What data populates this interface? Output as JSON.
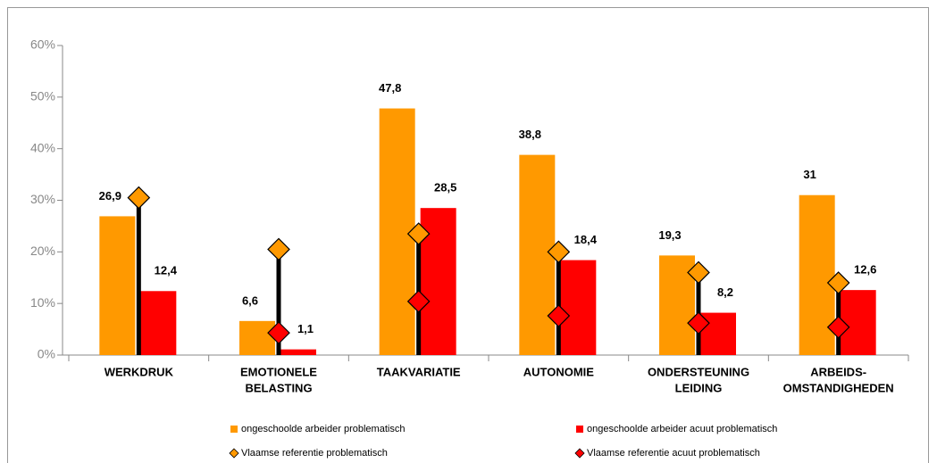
{
  "chart_data": {
    "type": "bar",
    "categories": [
      [
        "WERKDRUK"
      ],
      [
        "EMOTIONELE",
        "BELASTING"
      ],
      [
        "TAAKVARIATIE"
      ],
      [
        "AUTONOMIE"
      ],
      [
        "ONDERSTEUNING",
        "LEIDING"
      ],
      [
        "ARBEIDS-",
        "OMSTANDIGHEDEN"
      ]
    ],
    "series": [
      {
        "name": "ongeschoolde arbeider  problematisch",
        "kind": "bar",
        "color": "#FF9900",
        "values": [
          26.9,
          6.6,
          47.8,
          38.8,
          19.3,
          31
        ],
        "value_labels": [
          "26,9",
          "6,6",
          "47,8",
          "38,8",
          "19,3",
          "31"
        ]
      },
      {
        "name": "ongeschoolde arbeider acuut problematisch",
        "kind": "bar",
        "color": "#FF0000",
        "values": [
          12.4,
          1.1,
          28.5,
          18.4,
          8.2,
          12.6
        ],
        "value_labels": [
          "12,4",
          "1,1",
          "28,5",
          "18,4",
          "8,2",
          "12,6"
        ]
      },
      {
        "name": "Vlaamse referentie problematisch",
        "kind": "marker",
        "color": "#FF9900",
        "values": [
          30.5,
          20.5,
          23.5,
          20,
          16,
          14
        ]
      },
      {
        "name": "Vlaamse referentie acuut problematisch",
        "kind": "marker",
        "color": "#FF0000",
        "values": [
          null,
          4.3,
          10.4,
          7.6,
          6.2,
          5.4
        ]
      }
    ],
    "ylim": [
      0,
      60
    ],
    "yticks": [
      {
        "value": 0,
        "label": "0%"
      },
      {
        "value": 10,
        "label": "10%"
      },
      {
        "value": 20,
        "label": "20%"
      },
      {
        "value": 30,
        "label": "30%"
      },
      {
        "value": 40,
        "label": "40%"
      },
      {
        "value": 50,
        "label": "50%"
      },
      {
        "value": 60,
        "label": "60%"
      }
    ],
    "legend": "bottom"
  }
}
